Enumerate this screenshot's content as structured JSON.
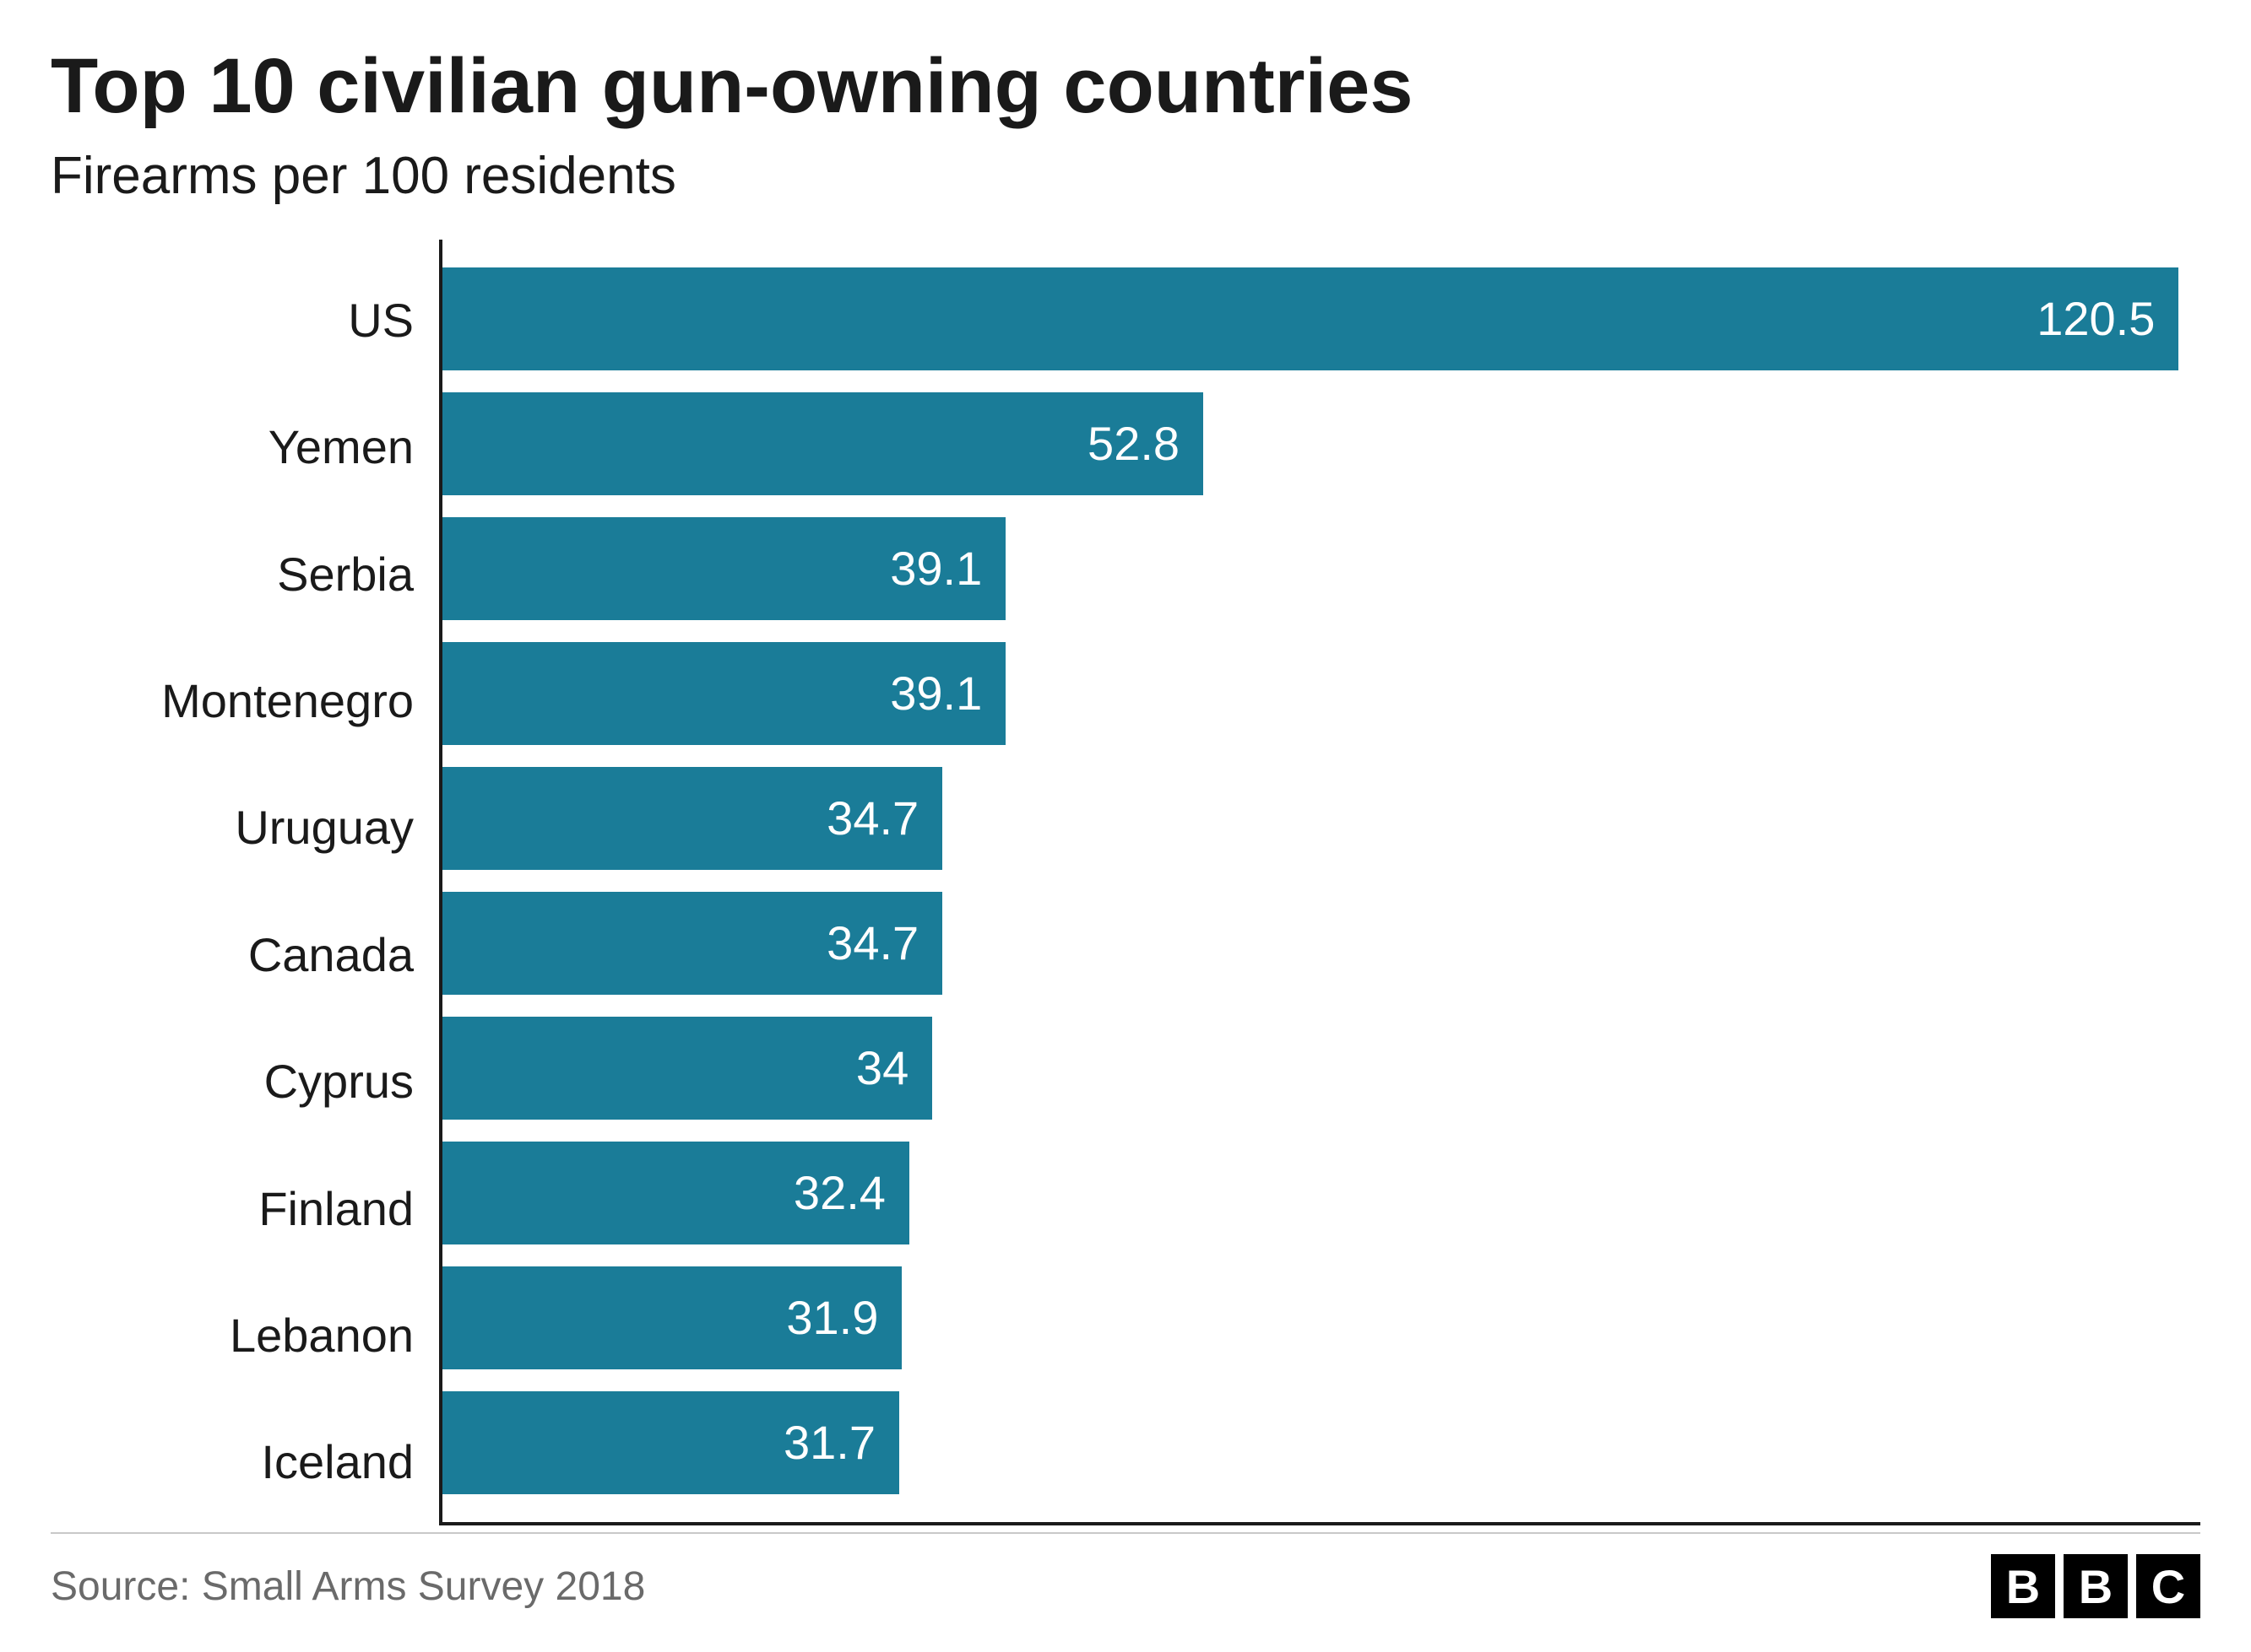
{
  "chart": {
    "type": "bar-horizontal",
    "title": "Top 10 civilian gun-owning countries",
    "title_fontsize": 92,
    "title_color": "#1a1a1a",
    "subtitle": "Firearms per 100 residents",
    "subtitle_fontsize": 62,
    "subtitle_color": "#1a1a1a",
    "categories": [
      "US",
      "Yemen",
      "Serbia",
      "Montenegro",
      "Uruguay",
      "Canada",
      "Cyprus",
      "Finland",
      "Lebanon",
      "Iceland"
    ],
    "values": [
      120.5,
      52.8,
      39.1,
      39.1,
      34.7,
      34.7,
      34,
      32.4,
      31.9,
      31.7
    ],
    "bar_color": "#1a7c98",
    "value_label_color": "#ffffff",
    "value_label_fontsize": 56,
    "category_label_fontsize": 56,
    "category_label_color": "#1a1a1a",
    "xlim": [
      0,
      122
    ],
    "axis_color": "#1a1a1a",
    "axis_width": 4,
    "background_color": "#ffffff",
    "bar_height_ratio": 0.82
  },
  "footer": {
    "source": "Source: Small Arms Survey 2018",
    "source_fontsize": 48,
    "source_color": "#6a6a6a",
    "divider_color": "#c8c8c8",
    "logo": {
      "letters": [
        "B",
        "B",
        "C"
      ],
      "box_bg": "#000000",
      "box_fg": "#ffffff"
    }
  }
}
